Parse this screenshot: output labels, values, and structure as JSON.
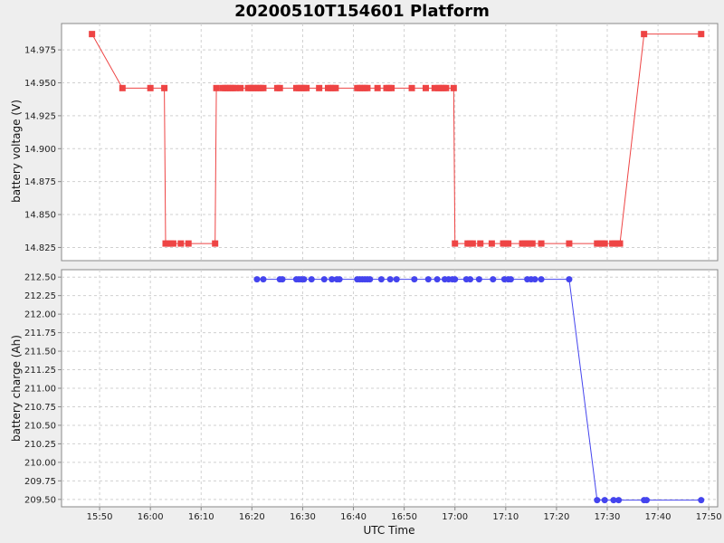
{
  "chart_data": [
    {
      "type": "line",
      "title": "20200510T154601 Platform",
      "ylabel": "battery voltage (V)",
      "xlabel": "",
      "ylim": [
        14.815,
        14.995
      ],
      "yticks": [
        14.825,
        14.85,
        14.875,
        14.9,
        14.925,
        14.95,
        14.975
      ],
      "ytick_labels": [
        "14.825",
        "14.850",
        "14.875",
        "14.900",
        "14.925",
        "14.950",
        "14.975"
      ],
      "grid": true,
      "series": [
        {
          "color": "#ee4444",
          "marker": "square",
          "x": [
            "15:48:30",
            "15:54:30",
            "16:00:00",
            "16:02:45",
            "16:03:00",
            "16:03:30",
            "16:04:00",
            "16:04:30",
            "16:06:00",
            "16:07:30",
            "16:12:45",
            "16:13:00",
            "16:14:15",
            "16:14:45",
            "16:15:15",
            "16:15:45",
            "16:16:15",
            "16:16:45",
            "16:17:45",
            "16:19:15",
            "16:19:45",
            "16:20:15",
            "16:20:45",
            "16:21:15",
            "16:21:45",
            "16:22:15",
            "16:25:00",
            "16:25:30",
            "16:28:45",
            "16:29:15",
            "16:29:45",
            "16:30:15",
            "16:30:45",
            "16:33:15",
            "16:35:00",
            "16:35:30",
            "16:36:00",
            "16:36:30",
            "16:40:45",
            "16:41:15",
            "16:41:45",
            "16:42:15",
            "16:42:45",
            "16:44:45",
            "16:46:30",
            "16:47:00",
            "16:47:30",
            "16:51:30",
            "16:54:15",
            "16:56:00",
            "16:56:45",
            "16:57:15",
            "16:57:45",
            "16:58:15",
            "16:59:45",
            "17:00:00",
            "17:02:30",
            "17:03:00",
            "17:03:30",
            "17:05:00",
            "17:07:15",
            "17:09:30",
            "17:10:00",
            "17:10:30",
            "17:13:15",
            "17:13:45",
            "17:14:15",
            "17:14:45",
            "17:15:15",
            "17:17:00",
            "17:22:30",
            "17:28:00",
            "17:28:30",
            "17:29:00",
            "17:29:30",
            "17:31:00",
            "17:31:30",
            "17:32:00",
            "17:32:30",
            "17:37:15",
            "17:48:30"
          ],
          "values": [
            14.987,
            14.946,
            14.946,
            14.946,
            14.828,
            14.828,
            14.828,
            14.828,
            14.828,
            14.828,
            14.828,
            14.946,
            14.946,
            14.946,
            14.946,
            14.946,
            14.946,
            14.946,
            14.946,
            14.946,
            14.946,
            14.946,
            14.946,
            14.946,
            14.946,
            14.946,
            14.946,
            14.946,
            14.946,
            14.946,
            14.946,
            14.946,
            14.946,
            14.946,
            14.946,
            14.946,
            14.946,
            14.946,
            14.946,
            14.946,
            14.946,
            14.946,
            14.946,
            14.946,
            14.946,
            14.946,
            14.946,
            14.946,
            14.946,
            14.946,
            14.946,
            14.946,
            14.946,
            14.946,
            14.946,
            14.828,
            14.828,
            14.828,
            14.828,
            14.828,
            14.828,
            14.828,
            14.828,
            14.828,
            14.828,
            14.828,
            14.828,
            14.828,
            14.828,
            14.828,
            14.828,
            14.828,
            14.828,
            14.828,
            14.828,
            14.828,
            14.828,
            14.828,
            14.828,
            14.987,
            14.987
          ]
        }
      ]
    },
    {
      "type": "line",
      "ylabel": "battery charge (Ah)",
      "xlabel": "UTC Time",
      "ylim": [
        209.4,
        212.6
      ],
      "yticks": [
        209.5,
        209.75,
        210.0,
        210.25,
        210.5,
        210.75,
        211.0,
        211.25,
        211.5,
        211.75,
        212.0,
        212.25,
        212.5
      ],
      "ytick_labels": [
        "209.50",
        "209.75",
        "210.00",
        "210.25",
        "210.50",
        "210.75",
        "211.00",
        "211.25",
        "211.50",
        "211.75",
        "212.00",
        "212.25",
        "212.50"
      ],
      "x_range": [
        "15:42:30",
        "17:51:45"
      ],
      "xticks": [
        "15:50",
        "16:00",
        "16:10",
        "16:20",
        "16:30",
        "16:40",
        "16:50",
        "17:00",
        "17:10",
        "17:20",
        "17:30",
        "17:40",
        "17:50"
      ],
      "grid": true,
      "series": [
        {
          "color": "#4444ee",
          "marker": "circle",
          "x": [
            "16:21:00",
            "16:22:15",
            "16:25:30",
            "16:26:00",
            "16:28:45",
            "16:29:15",
            "16:29:45",
            "16:30:15",
            "16:31:45",
            "16:34:15",
            "16:35:45",
            "16:36:45",
            "16:37:15",
            "16:40:45",
            "16:41:15",
            "16:41:45",
            "16:42:15",
            "16:42:45",
            "16:43:15",
            "16:45:30",
            "16:47:15",
            "16:48:30",
            "16:52:00",
            "16:54:45",
            "16:56:30",
            "16:58:00",
            "16:58:45",
            "16:59:30",
            "17:00:00",
            "17:02:15",
            "17:03:00",
            "17:04:45",
            "17:07:30",
            "17:09:45",
            "17:10:30",
            "17:11:00",
            "17:14:15",
            "17:15:00",
            "17:15:45",
            "17:17:00",
            "17:22:30",
            "17:28:00",
            "17:29:30",
            "17:31:15",
            "17:32:15",
            "17:37:15",
            "17:37:45",
            "17:48:30"
          ],
          "values": [
            212.47,
            212.47,
            212.47,
            212.47,
            212.47,
            212.47,
            212.47,
            212.47,
            212.47,
            212.47,
            212.47,
            212.47,
            212.47,
            212.47,
            212.47,
            212.47,
            212.47,
            212.47,
            212.47,
            212.47,
            212.47,
            212.47,
            212.47,
            212.47,
            212.47,
            212.47,
            212.47,
            212.47,
            212.47,
            212.47,
            212.47,
            212.47,
            212.47,
            212.47,
            212.47,
            212.47,
            212.47,
            212.47,
            212.47,
            212.47,
            212.47,
            209.49,
            209.49,
            209.49,
            209.49,
            209.49,
            209.49,
            209.49
          ]
        }
      ]
    }
  ]
}
